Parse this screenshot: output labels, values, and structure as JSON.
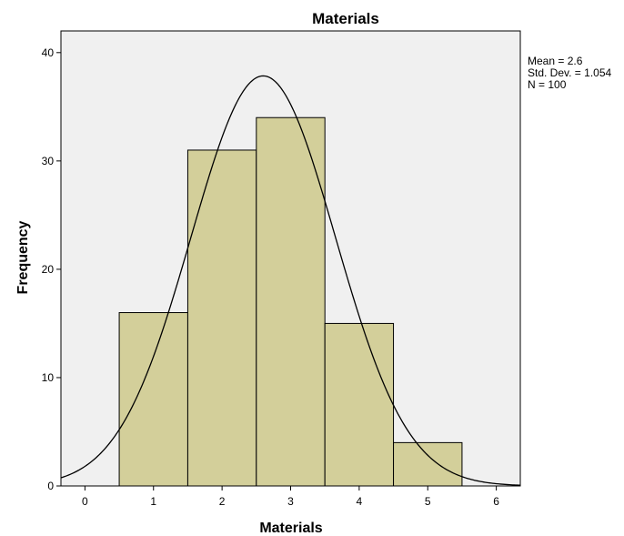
{
  "chart_data": {
    "type": "bar",
    "title": "Materials",
    "xlabel": "Materials",
    "ylabel": "Frequency",
    "bins": [
      {
        "x": 1,
        "value": 16
      },
      {
        "x": 2,
        "value": 31
      },
      {
        "x": 3,
        "value": 34
      },
      {
        "x": 4,
        "value": 15
      },
      {
        "x": 5,
        "value": 4
      }
    ],
    "bin_width": 1,
    "xlim": [
      -0.35,
      6.35
    ],
    "ylim": [
      0,
      42
    ],
    "xticks": [
      "0",
      "1",
      "2",
      "3",
      "4",
      "5",
      "6"
    ],
    "yticks": [
      "0",
      "10",
      "20",
      "30",
      "40"
    ],
    "normal_curve": {
      "mean": 2.6,
      "std_dev": 1.054,
      "n": 100
    },
    "stats": {
      "mean_label": "Mean = 2.6",
      "std_label": "Std. Dev. = 1.054",
      "n_label": "N = 100"
    },
    "colors": {
      "bar_fill": "#d3cf9a",
      "plot_background": "#f0f0f0",
      "curve": "#000000"
    },
    "grid": false
  }
}
